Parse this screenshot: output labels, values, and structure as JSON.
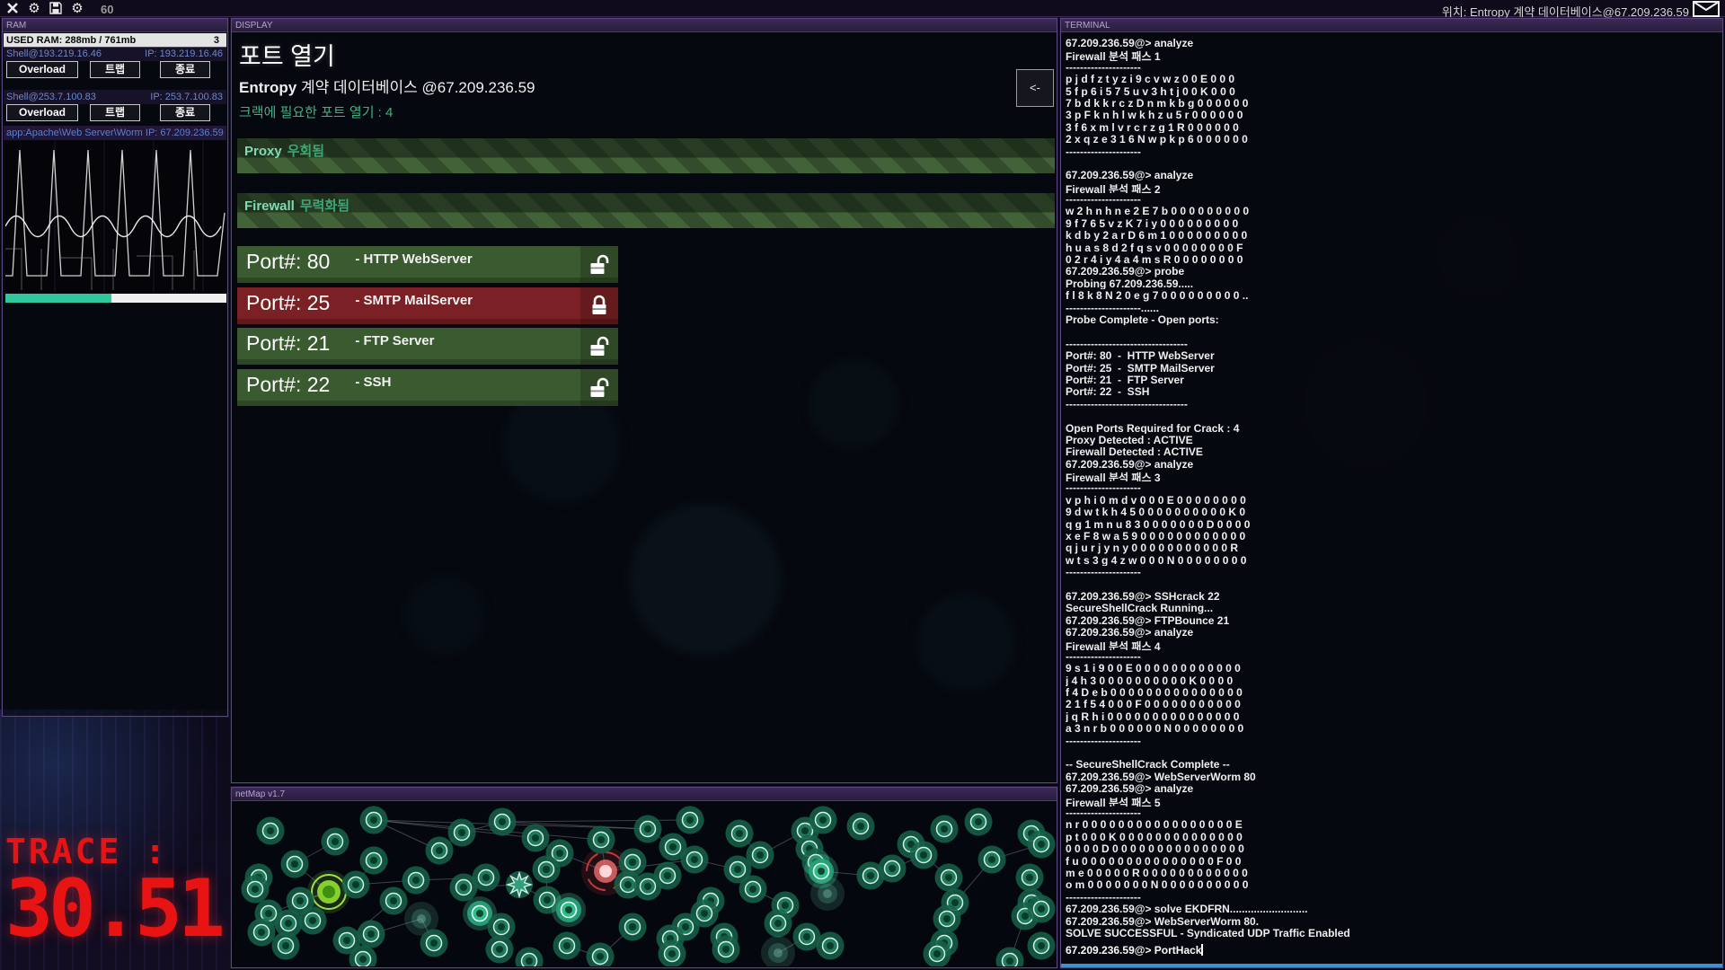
{
  "top_bar": {
    "hack_points": "60",
    "location_label": "위치: Entropy 계약 데이터베이스@67.209.236.59",
    "icons": [
      "close-icon",
      "gear-icon",
      "save-icon",
      "settings-gear-icon",
      "mail-icon"
    ]
  },
  "ram_panel": {
    "title": "RAM",
    "used_ram": "USED RAM: 288mb / 761mb",
    "used_ram_count": "3",
    "shells": [
      {
        "name": "Shell@193.219.16.46",
        "ip": "IP: 193.219.16.46",
        "buttons": [
          "Overload",
          "트랩",
          "종료"
        ]
      },
      {
        "name": "Shell@253.7.100.83",
        "ip": "IP: 253.7.100.83",
        "buttons": [
          "Overload",
          "트랩",
          "종료"
        ]
      }
    ],
    "worm": {
      "title": "app:Apache\\Web Server\\Worm IP: 67.209.236.59",
      "progress_pct": 48
    }
  },
  "display_panel": {
    "title": "DISPLAY",
    "heading": "포트 열기",
    "target_bold": "Entropy",
    "target_rest": " 계약 데이터베이스 @67.209.236.59",
    "ports_required": "크랙에 필요한 포트 열기 : 4",
    "back_button": "<-",
    "status_bars": [
      {
        "name": "Proxy",
        "status": "우회됨"
      },
      {
        "name": "Firewall",
        "status": "무력화됨"
      }
    ],
    "ports": [
      {
        "prefix": "Port#:",
        "number": "80",
        "service": "- HTTP WebServer",
        "state": "open"
      },
      {
        "prefix": "Port#:",
        "number": "25",
        "service": "- SMTP MailServer",
        "state": "closed"
      },
      {
        "prefix": "Port#:",
        "number": "21",
        "service": "- FTP Server",
        "state": "open"
      },
      {
        "prefix": "Port#:",
        "number": "22",
        "service": "- SSH",
        "state": "open"
      }
    ]
  },
  "netmap_panel": {
    "title": "netMap v1.7",
    "node_types": {
      "0": "normal",
      "1": "home",
      "2": "target",
      "3": "star",
      "4": "faint",
      "5": "bright"
    },
    "nodes": [
      [
        42,
        33,
        0
      ],
      [
        114,
        45,
        0
      ],
      [
        157,
        21,
        0
      ],
      [
        69,
        70,
        0
      ],
      [
        157,
        66,
        0
      ],
      [
        29,
        85,
        0
      ],
      [
        25,
        98,
        0
      ],
      [
        107,
        101,
        1
      ],
      [
        137,
        93,
        0
      ],
      [
        204,
        88,
        0
      ],
      [
        179,
        111,
        0
      ],
      [
        75,
        111,
        0
      ],
      [
        40,
        125,
        0
      ],
      [
        89,
        133,
        0
      ],
      [
        62,
        136,
        0
      ],
      [
        32,
        146,
        0
      ],
      [
        59,
        161,
        0
      ],
      [
        127,
        155,
        0
      ],
      [
        154,
        148,
        0
      ],
      [
        145,
        176,
        0
      ],
      [
        210,
        131,
        4
      ],
      [
        224,
        158,
        0
      ],
      [
        230,
        55,
        0
      ],
      [
        255,
        35,
        0
      ],
      [
        300,
        23,
        0
      ],
      [
        282,
        85,
        0
      ],
      [
        257,
        96,
        0
      ],
      [
        275,
        125,
        5
      ],
      [
        299,
        140,
        0
      ],
      [
        297,
        165,
        0
      ],
      [
        330,
        178,
        0
      ],
      [
        319,
        93,
        3
      ],
      [
        337,
        41,
        0
      ],
      [
        364,
        58,
        0
      ],
      [
        349,
        76,
        0
      ],
      [
        350,
        110,
        0
      ],
      [
        374,
        121,
        5
      ],
      [
        415,
        78,
        2
      ],
      [
        410,
        43,
        0
      ],
      [
        445,
        68,
        0
      ],
      [
        440,
        93,
        0
      ],
      [
        445,
        140,
        0
      ],
      [
        372,
        161,
        0
      ],
      [
        409,
        173,
        0
      ],
      [
        462,
        31,
        0
      ],
      [
        509,
        21,
        0
      ],
      [
        490,
        51,
        0
      ],
      [
        514,
        65,
        0
      ],
      [
        484,
        83,
        0
      ],
      [
        462,
        95,
        0
      ],
      [
        532,
        111,
        0
      ],
      [
        525,
        125,
        0
      ],
      [
        504,
        140,
        0
      ],
      [
        487,
        153,
        0
      ],
      [
        489,
        170,
        0
      ],
      [
        547,
        151,
        0
      ],
      [
        549,
        165,
        0
      ],
      [
        564,
        36,
        0
      ],
      [
        562,
        76,
        0
      ],
      [
        587,
        60,
        0
      ],
      [
        579,
        98,
        0
      ],
      [
        615,
        116,
        0
      ],
      [
        607,
        136,
        0
      ],
      [
        637,
        33,
        0
      ],
      [
        657,
        21,
        0
      ],
      [
        642,
        53,
        0
      ],
      [
        649,
        68,
        0
      ],
      [
        655,
        78,
        5
      ],
      [
        662,
        103,
        4
      ],
      [
        607,
        169,
        4
      ],
      [
        639,
        151,
        0
      ],
      [
        665,
        161,
        0
      ],
      [
        699,
        28,
        0
      ],
      [
        710,
        83,
        0
      ],
      [
        734,
        75,
        0
      ],
      [
        755,
        48,
        0
      ],
      [
        769,
        60,
        0
      ],
      [
        792,
        31,
        0
      ],
      [
        797,
        85,
        0
      ],
      [
        804,
        113,
        0
      ],
      [
        795,
        131,
        0
      ],
      [
        792,
        158,
        0
      ],
      [
        784,
        170,
        0
      ],
      [
        830,
        23,
        0
      ],
      [
        845,
        65,
        0
      ],
      [
        889,
        36,
        0
      ],
      [
        900,
        48,
        0
      ],
      [
        887,
        85,
        0
      ],
      [
        889,
        113,
        0
      ],
      [
        882,
        128,
        0
      ],
      [
        900,
        120,
        0
      ],
      [
        865,
        178,
        0
      ],
      [
        900,
        161,
        0
      ]
    ],
    "edges": [
      [
        2,
        22
      ],
      [
        2,
        32
      ],
      [
        2,
        38
      ],
      [
        2,
        44
      ],
      [
        22,
        23
      ],
      [
        23,
        24
      ],
      [
        24,
        44
      ],
      [
        24,
        45
      ],
      [
        1,
        3
      ],
      [
        3,
        7
      ],
      [
        7,
        11
      ],
      [
        7,
        12
      ],
      [
        8,
        9
      ],
      [
        9,
        25
      ],
      [
        25,
        26
      ],
      [
        26,
        31
      ],
      [
        31,
        35
      ],
      [
        35,
        36
      ],
      [
        32,
        33
      ],
      [
        33,
        37
      ],
      [
        37,
        39
      ],
      [
        37,
        40
      ],
      [
        38,
        37
      ],
      [
        34,
        35
      ],
      [
        27,
        28
      ],
      [
        28,
        29
      ],
      [
        17,
        18
      ],
      [
        18,
        20
      ],
      [
        20,
        21
      ],
      [
        13,
        14
      ],
      [
        14,
        15
      ],
      [
        15,
        16
      ],
      [
        4,
        8
      ],
      [
        10,
        17
      ],
      [
        41,
        43
      ],
      [
        42,
        43
      ],
      [
        44,
        46
      ],
      [
        46,
        47
      ],
      [
        47,
        58
      ],
      [
        57,
        59
      ],
      [
        59,
        63
      ],
      [
        63,
        65
      ],
      [
        65,
        66
      ],
      [
        67,
        73
      ],
      [
        73,
        74
      ],
      [
        74,
        76
      ],
      [
        76,
        78
      ],
      [
        78,
        79
      ],
      [
        79,
        84
      ],
      [
        84,
        86
      ],
      [
        85,
        86
      ],
      [
        87,
        90
      ],
      [
        88,
        89
      ],
      [
        50,
        51
      ],
      [
        51,
        52
      ],
      [
        52,
        53
      ],
      [
        53,
        54
      ],
      [
        55,
        56
      ],
      [
        60,
        61
      ],
      [
        61,
        62
      ],
      [
        69,
        70
      ],
      [
        70,
        71
      ],
      [
        5,
        6
      ],
      [
        48,
        49
      ],
      [
        80,
        81
      ],
      [
        81,
        82
      ],
      [
        89,
        91
      ],
      [
        12,
        15
      ],
      [
        37,
        47
      ]
    ]
  },
  "trace": {
    "label": "TRACE :",
    "value": "30.51"
  },
  "terminal": {
    "title": "TERMINAL",
    "lines": [
      "67.209.236.59@> analyze",
      "Firewall 분석 패스 1",
      "---------------------",
      "p j d f z t y z i 9 c v w z 0 0 E 0 0 0",
      "5 f p 6 i 5 7 5 u v 3 h t j 0 0 K 0 0 0",
      "7 b d k k r c z D n m k b g 0 0 0 0 0 0",
      "3 p F k n h l w k h z u 5 r 0 0 0 0 0 0",
      "3 f 6 x m l v r c r z g 1 R 0 0 0 0 0 0",
      "2 x q z e 3 1 6 N w p k p 6 0 0 0 0 0 0",
      "---------------------",
      "",
      "67.209.236.59@> analyze",
      "Firewall 분석 패스 2",
      "---------------------",
      "w 2 h n h n e 2 E 7 b 0 0 0 0 0 0 0 0 0",
      "9 f 7 6 5 v z K 7 i y 0 0 0 0 0 0 0 0 0",
      "k d b y 2 a r D 6 m 1 0 0 0 0 0 0 0 0 0",
      "h u a s 8 d 2 f q s v 0 0 0 0 0 0 0 0 F",
      "0 2 r 4 i y 4 a 4 m s R 0 0 0 0 0 0 0 0",
      "67.209.236.59@> probe",
      "Probing 67.209.236.59.....",
      "f l 8 k 8 N 2 0 e g 7 0 0 0 0 0 0 0 0 0 ..",
      "---------------------......",
      "Probe Complete - Open ports:",
      "",
      "----------------------------------",
      "Port#: 80  -  HTTP WebServer",
      "Port#: 25  -  SMTP MailServer",
      "Port#: 21  -  FTP Server",
      "Port#: 22  -  SSH",
      "----------------------------------",
      "",
      "Open Ports Required for Crack : 4",
      "Proxy Detected : ACTIVE",
      "Firewall Detected : ACTIVE",
      "67.209.236.59@> analyze",
      "Firewall 분석 패스 3",
      "---------------------",
      "v p h i 0 m d v 0 0 0 E 0 0 0 0 0 0 0 0",
      "9 d w t k h 4 5 0 0 0 0 0 0 0 0 0 0 K 0",
      "q g 1 m n u 8 3 0 0 0 0 0 0 0 D 0 0 0 0",
      "x e F 8 w a 5 9 0 0 0 0 0 0 0 0 0 0 0 0",
      "q j u r j y n y 0 0 0 0 0 0 0 0 0 0 0 R",
      "w t s 3 g 4 z w 0 0 0 N 0 0 0 0 0 0 0 0",
      "---------------------",
      "",
      "67.209.236.59@> SSHcrack 22",
      "SecureShellCrack Running...",
      "67.209.236.59@> FTPBounce 21",
      "67.209.236.59@> analyze",
      "Firewall 분석 패스 4",
      "---------------------",
      "9 s 1 i 9 0 0 E 0 0 0 0 0 0 0 0 0 0 0 0",
      "j 4 h 3 0 0 0 0 0 0 0 0 0 0 K 0 0 0 0",
      "f 4 D e b 0 0 0 0 0 0 0 0 0 0 0 0 0 0 0",
      "2 1 f 5 4 0 0 0 F 0 0 0 0 0 0 0 0 0 0 0",
      "j q R h i 0 0 0 0 0 0 0 0 0 0 0 0 0 0 0",
      "a 3 n r b 0 0 0 0 0 0 N 0 0 0 0 0 0 0 0",
      "---------------------",
      "",
      "-- SecureShellCrack Complete --",
      "67.209.236.59@> WebServerWorm 80",
      "67.209.236.59@> analyze",
      "Firewall 분석 패스 5",
      "---------------------",
      "n r 0 0 0 0 0 0 0 0 0 0 0 0 0 0 0 0 0 E",
      "p t 0 0 0 K 0 0 0 0 0 0 0 0 0 0 0 0 0 0",
      "0 0 0 0 D 0 0 0 0 0 0 0 0 0 0 0 0 0 0 0",
      "f u 0 0 0 0 0 0 0 0 0 0 0 0 0 0 0 F 0 0",
      "m e 0 0 0 0 0 R 0 0 0 0 0 0 0 0 0 0 0 0",
      "o m 0 0 0 0 0 0 0 N 0 0 0 0 0 0 0 0 0 0",
      "---------------------",
      "67.209.236.59@> solve EKDFRN..........................",
      "67.209.236.59@> WebServerWorm 80.",
      "SOLVE SUCCESSFUL - Syndicated UDP Traffic Enabled"
    ],
    "prompt": "67.209.236.59@> PortHack"
  },
  "colors": {
    "accent_purple": "#5a4683",
    "port_open": "#3a5a30",
    "port_closed": "#7b2125",
    "status_green_text": "#7fdcb2",
    "progress_teal": "#2fc79b",
    "trace_red": "#e81414",
    "terminal_bottom_blue": "#3e8fd4",
    "node_teal": "#1d7a5c",
    "home_green": "#86cf2e",
    "target_red": "#f07070"
  }
}
